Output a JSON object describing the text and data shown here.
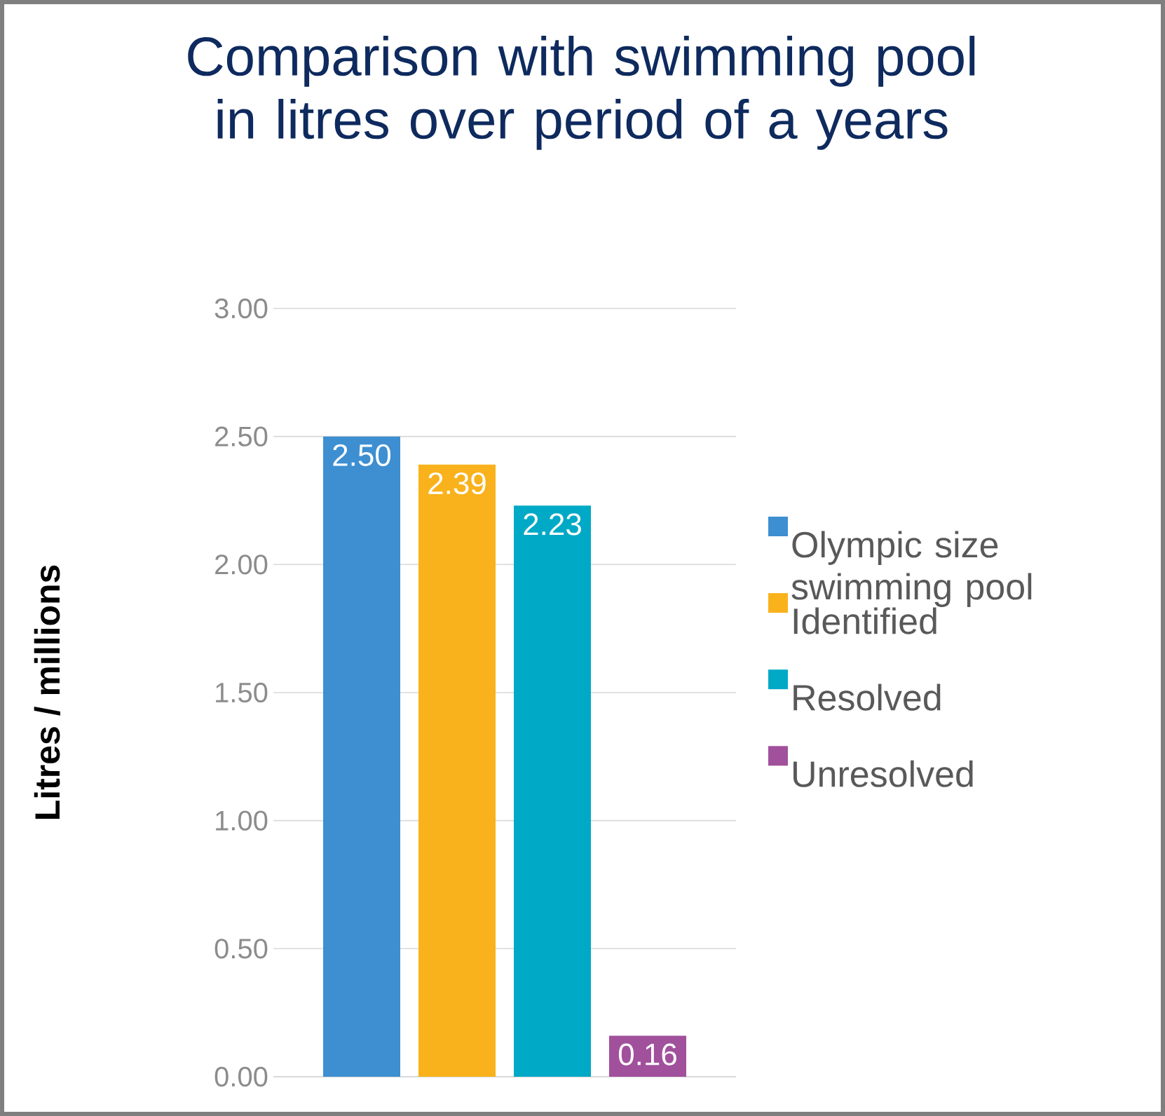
{
  "chart_data": {
    "type": "bar",
    "title": "Comparison with swimming pool in litres over period of a years",
    "ylabel": "Litres / millions",
    "categories": [
      null
    ],
    "series": [
      {
        "name": "Olympic size swimming pool",
        "color": "#3d8fd1",
        "values": [
          2.5
        ],
        "value_labels": [
          "2.50"
        ]
      },
      {
        "name": "Identified",
        "color": "#f9b21b",
        "values": [
          2.39
        ],
        "value_labels": [
          "2.39"
        ]
      },
      {
        "name": "Resolved",
        "color": "#00a9c6",
        "values": [
          2.23
        ],
        "value_labels": [
          "2.23"
        ]
      },
      {
        "name": "Unresolved",
        "color": "#a1509c",
        "values": [
          0.16
        ],
        "value_labels": [
          "0.16"
        ]
      }
    ],
    "ylim": [
      0,
      3
    ],
    "yticks": [
      {
        "value": 0,
        "label": "0.00"
      },
      {
        "value": 0.5,
        "label": "0.50"
      },
      {
        "value": 1,
        "label": "1.00"
      },
      {
        "value": 1.5,
        "label": "1.50"
      },
      {
        "value": 2,
        "label": "2.00"
      },
      {
        "value": 2.5,
        "label": "2.50"
      },
      {
        "value": 3,
        "label": "3.00"
      }
    ],
    "grid": "y",
    "legend": "right"
  }
}
